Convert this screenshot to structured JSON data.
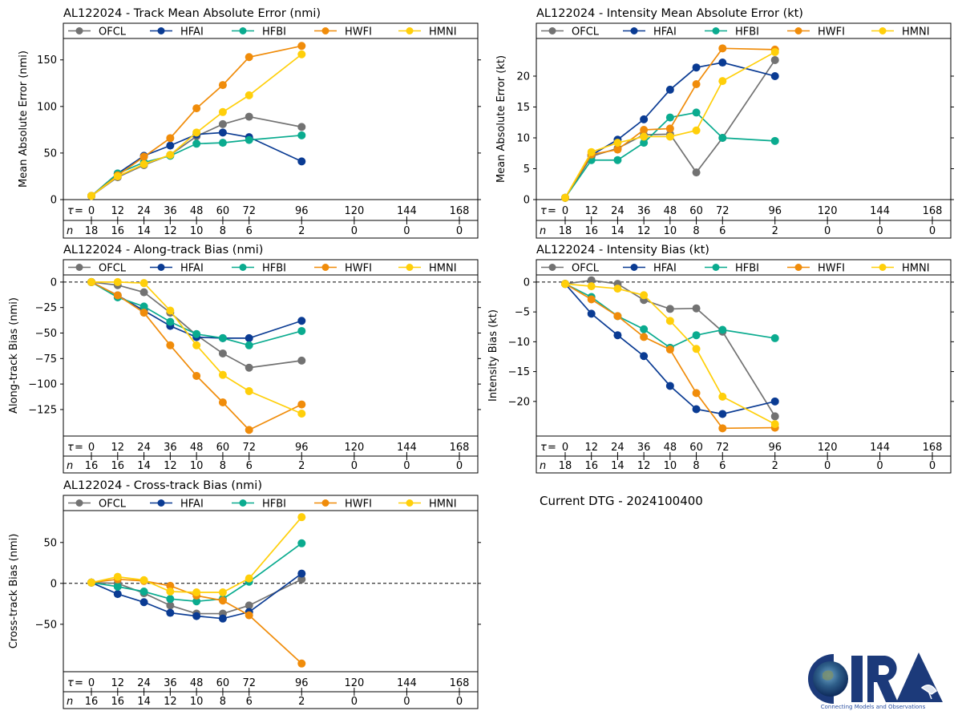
{
  "storm_id": "AL122024",
  "current_dtg_label": "Current DTG - 2024100400",
  "logo": {
    "text": "CIRA",
    "tagline": "Connecting Models and Observations"
  },
  "models": [
    {
      "name": "OFCL",
      "color": "#727272"
    },
    {
      "name": "HFAI",
      "color": "#0a3b93"
    },
    {
      "name": "HFBI",
      "color": "#0aab8f"
    },
    {
      "name": "HWFI",
      "color": "#f08c0a"
    },
    {
      "name": "HMNI",
      "color": "#ffcf0a"
    }
  ],
  "chart_data": [
    {
      "id": "track-mae",
      "type": "line",
      "title": "AL122024 - Track Mean Absolute Error (nmi)",
      "ylabel": "Mean Absolute Error (nmi)",
      "xlabel": "τ",
      "x": [
        0,
        12,
        24,
        36,
        48,
        60,
        72,
        96
      ],
      "x_ticks": [
        0,
        12,
        24,
        36,
        48,
        60,
        72,
        96,
        120,
        144,
        168
      ],
      "n_counts": [
        18,
        16,
        14,
        12,
        10,
        8,
        6,
        2,
        0,
        0,
        0
      ],
      "ylim": [
        0,
        173
      ],
      "y_ticks": [
        0,
        50,
        100,
        150
      ],
      "zero_line": false,
      "legend": "top",
      "series": [
        {
          "name": "OFCL",
          "values": [
            4,
            24,
            37,
            48,
            68,
            81,
            89,
            78
          ]
        },
        {
          "name": "HFAI",
          "values": [
            4,
            28,
            47,
            58,
            70,
            72,
            67,
            41
          ]
        },
        {
          "name": "HFBI",
          "values": [
            4,
            28,
            40,
            47,
            60,
            61,
            64,
            69
          ]
        },
        {
          "name": "HWFI",
          "values": [
            4,
            26,
            46,
            66,
            98,
            123,
            153,
            165
          ]
        },
        {
          "name": "HMNI",
          "values": [
            4,
            25,
            38,
            48,
            72,
            94,
            112,
            156
          ]
        }
      ]
    },
    {
      "id": "intensity-mae",
      "type": "line",
      "title": "AL122024 - Intensity Mean Absolute Error (kt)",
      "ylabel": "Mean Absolute Error (kt)",
      "xlabel": "τ",
      "x": [
        0,
        12,
        24,
        36,
        48,
        60,
        72,
        96
      ],
      "x_ticks": [
        0,
        12,
        24,
        36,
        48,
        60,
        72,
        96,
        120,
        144,
        168
      ],
      "n_counts": [
        18,
        16,
        14,
        12,
        10,
        8,
        6,
        2,
        0,
        0,
        0
      ],
      "ylim": [
        0,
        26.1
      ],
      "y_ticks": [
        0,
        5,
        10,
        15,
        20
      ],
      "zero_line": false,
      "legend": "top",
      "series": [
        {
          "name": "OFCL",
          "values": [
            0.3,
            7.0,
            8.3,
            10.5,
            10.6,
            4.4,
            10.0,
            22.6
          ]
        },
        {
          "name": "HFAI",
          "values": [
            0.3,
            7.2,
            9.7,
            13.0,
            17.8,
            21.4,
            22.2,
            20.0
          ]
        },
        {
          "name": "HFBI",
          "values": [
            0.3,
            6.4,
            6.4,
            9.2,
            13.3,
            14.1,
            10.0,
            9.5
          ]
        },
        {
          "name": "HWFI",
          "values": [
            0.3,
            7.3,
            8.1,
            11.3,
            11.5,
            18.7,
            24.5,
            24.3
          ]
        },
        {
          "name": "HMNI",
          "values": [
            0.3,
            7.7,
            9.2,
            10.2,
            10.2,
            11.2,
            19.2,
            23.9
          ]
        }
      ]
    },
    {
      "id": "along-track-bias",
      "type": "line",
      "title": "AL122024 - Along-track Bias (nmi)",
      "ylabel": "Along-track Bias (nmi)",
      "xlabel": "τ",
      "x": [
        0,
        12,
        24,
        36,
        48,
        60,
        72,
        96
      ],
      "x_ticks": [
        0,
        12,
        24,
        36,
        48,
        60,
        72,
        96,
        120,
        144,
        168
      ],
      "n_counts": [
        16,
        16,
        14,
        12,
        10,
        8,
        6,
        2,
        0,
        0,
        0
      ],
      "ylim": [
        -151,
        7
      ],
      "y_ticks": [
        0,
        -25,
        -50,
        -75,
        -100,
        -125
      ],
      "zero_line": true,
      "legend": "top",
      "series": [
        {
          "name": "OFCL",
          "values": [
            0,
            -3,
            -10,
            -30,
            -52,
            -70,
            -84,
            -77
          ]
        },
        {
          "name": "HFAI",
          "values": [
            0,
            -13,
            -28,
            -43,
            -54,
            -55,
            -55,
            -38
          ]
        },
        {
          "name": "HFBI",
          "values": [
            0,
            -15,
            -24,
            -39,
            -51,
            -55,
            -62,
            -48
          ]
        },
        {
          "name": "HWFI",
          "values": [
            0,
            -13,
            -30,
            -62,
            -92,
            -118,
            -145,
            -120
          ]
        },
        {
          "name": "HMNI",
          "values": [
            0,
            0,
            -1,
            -28,
            -62,
            -91,
            -107,
            -129
          ]
        }
      ]
    },
    {
      "id": "intensity-bias",
      "type": "line",
      "title": "AL122024 - Intensity Bias (kt)",
      "ylabel": "Intensity Bias (kt)",
      "xlabel": "τ",
      "x": [
        0,
        12,
        24,
        36,
        48,
        60,
        72,
        96
      ],
      "x_ticks": [
        0,
        12,
        24,
        36,
        48,
        60,
        72,
        96,
        120,
        144,
        168
      ],
      "n_counts": [
        18,
        16,
        14,
        12,
        10,
        8,
        6,
        2,
        0,
        0,
        0
      ],
      "ylim": [
        -25.8,
        1.2
      ],
      "y_ticks": [
        0,
        -5,
        -10,
        -15,
        -20
      ],
      "zero_line": true,
      "legend": "top",
      "series": [
        {
          "name": "OFCL",
          "values": [
            -0.3,
            0.3,
            -0.3,
            -3.0,
            -4.5,
            -4.4,
            -8.3,
            -22.5
          ]
        },
        {
          "name": "HFAI",
          "values": [
            -0.3,
            -5.3,
            -8.9,
            -12.4,
            -17.4,
            -21.3,
            -22.1,
            -20.0
          ]
        },
        {
          "name": "HFBI",
          "values": [
            -0.3,
            -2.5,
            -5.7,
            -7.9,
            -11.0,
            -8.9,
            -8.0,
            -9.4
          ]
        },
        {
          "name": "HWFI",
          "values": [
            -0.3,
            -2.9,
            -5.7,
            -9.2,
            -11.3,
            -18.6,
            -24.5,
            -24.4
          ]
        },
        {
          "name": "HMNI",
          "values": [
            -0.3,
            -0.7,
            -1.1,
            -2.2,
            -6.5,
            -11.2,
            -19.2,
            -23.8
          ]
        }
      ]
    },
    {
      "id": "cross-track-bias",
      "type": "line",
      "title": "AL122024 - Cross-track Bias (nmi)",
      "ylabel": "Cross-track Bias (nmi)",
      "xlabel": "τ",
      "x": [
        0,
        12,
        24,
        36,
        48,
        60,
        72,
        96
      ],
      "x_ticks": [
        0,
        12,
        24,
        36,
        48,
        60,
        72,
        96,
        120,
        144,
        168
      ],
      "n_counts": [
        16,
        16,
        14,
        12,
        10,
        8,
        6,
        2,
        0,
        0,
        0
      ],
      "ylim": [
        -108,
        89
      ],
      "y_ticks": [
        50,
        0,
        -50
      ],
      "zero_line": true,
      "legend": "top",
      "series": [
        {
          "name": "OFCL",
          "values": [
            1,
            0,
            -12,
            -27,
            -37,
            -37,
            -27,
            5
          ]
        },
        {
          "name": "HFAI",
          "values": [
            1,
            -13,
            -23,
            -36,
            -40,
            -43,
            -35,
            12
          ]
        },
        {
          "name": "HFBI",
          "values": [
            1,
            -4,
            -10,
            -19,
            -22,
            -19,
            2,
            49
          ]
        },
        {
          "name": "HWFI",
          "values": [
            1,
            5,
            3,
            -3,
            -15,
            -21,
            -39,
            -98
          ]
        },
        {
          "name": "HMNI",
          "values": [
            1,
            8,
            4,
            -10,
            -11,
            -11,
            6,
            81
          ]
        }
      ]
    }
  ]
}
